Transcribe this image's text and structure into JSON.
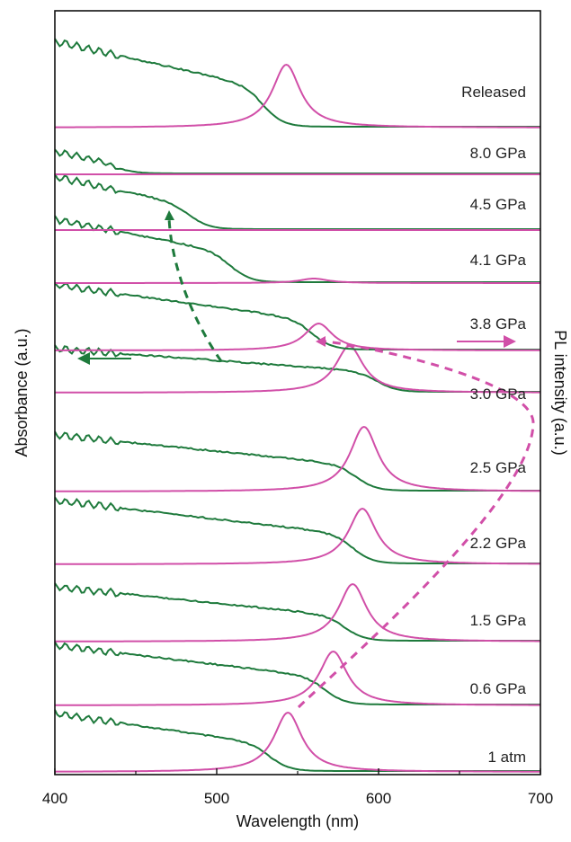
{
  "chart_data": {
    "type": "line",
    "title": "",
    "xlabel": "Wavelength (nm)",
    "ylabel_left": "Absorbance (a.u.)",
    "ylabel_right": "PL intensity (a.u.)",
    "xlim": [
      400,
      700
    ],
    "x_ticks": [
      "400",
      "500",
      "600",
      "700"
    ],
    "colors": {
      "absorbance": "#1e7a3c",
      "pl": "#d14fa8",
      "frame": "#111111"
    },
    "traces": [
      {
        "label": "1 atm",
        "abs_edge": 534,
        "abs_level": 0.6,
        "pl_peak": 544,
        "pl_height": 1.0
      },
      {
        "label": "0.6 GPa",
        "abs_edge": 568,
        "abs_level": 0.7,
        "pl_peak": 572,
        "pl_height": 1.0
      },
      {
        "label": "1.5 GPa",
        "abs_edge": 580,
        "abs_level": 0.75,
        "pl_peak": 584,
        "pl_height": 1.0
      },
      {
        "label": "2.2 GPa",
        "abs_edge": 585,
        "abs_level": 0.8,
        "pl_peak": 590,
        "pl_height": 1.0
      },
      {
        "label": "2.5 GPa",
        "abs_edge": 587,
        "abs_level": 0.85,
        "pl_peak": 591,
        "pl_height": 1.0
      },
      {
        "label": "3.0 GPa",
        "abs_edge": 600,
        "abs_level": 0.55,
        "pl_peak": 582,
        "pl_height": 0.6
      },
      {
        "label": "3.8 GPa",
        "abs_edge": 560,
        "abs_level": 0.4,
        "pl_peak": 563,
        "pl_height": 0.25
      },
      {
        "label": "4.1 GPa",
        "abs_edge": 510,
        "abs_level": 0.3,
        "pl_peak": 560,
        "pl_height": 0.05
      },
      {
        "label": "4.5 GPa",
        "abs_edge": 485,
        "abs_level": 0.2,
        "pl_peak": 0,
        "pl_height": 0
      },
      {
        "label": "8.0 GPa",
        "abs_edge": 440,
        "abs_level": 0.1,
        "pl_peak": 0,
        "pl_height": 0
      },
      {
        "label": "Released",
        "abs_edge": 530,
        "abs_level": 0.85,
        "pl_peak": 543,
        "pl_height": 1.0
      }
    ],
    "legend": [
      {
        "series": "absorbance",
        "axis": "left",
        "arrow": "left"
      },
      {
        "series": "pl",
        "axis": "right",
        "arrow": "right"
      }
    ]
  }
}
